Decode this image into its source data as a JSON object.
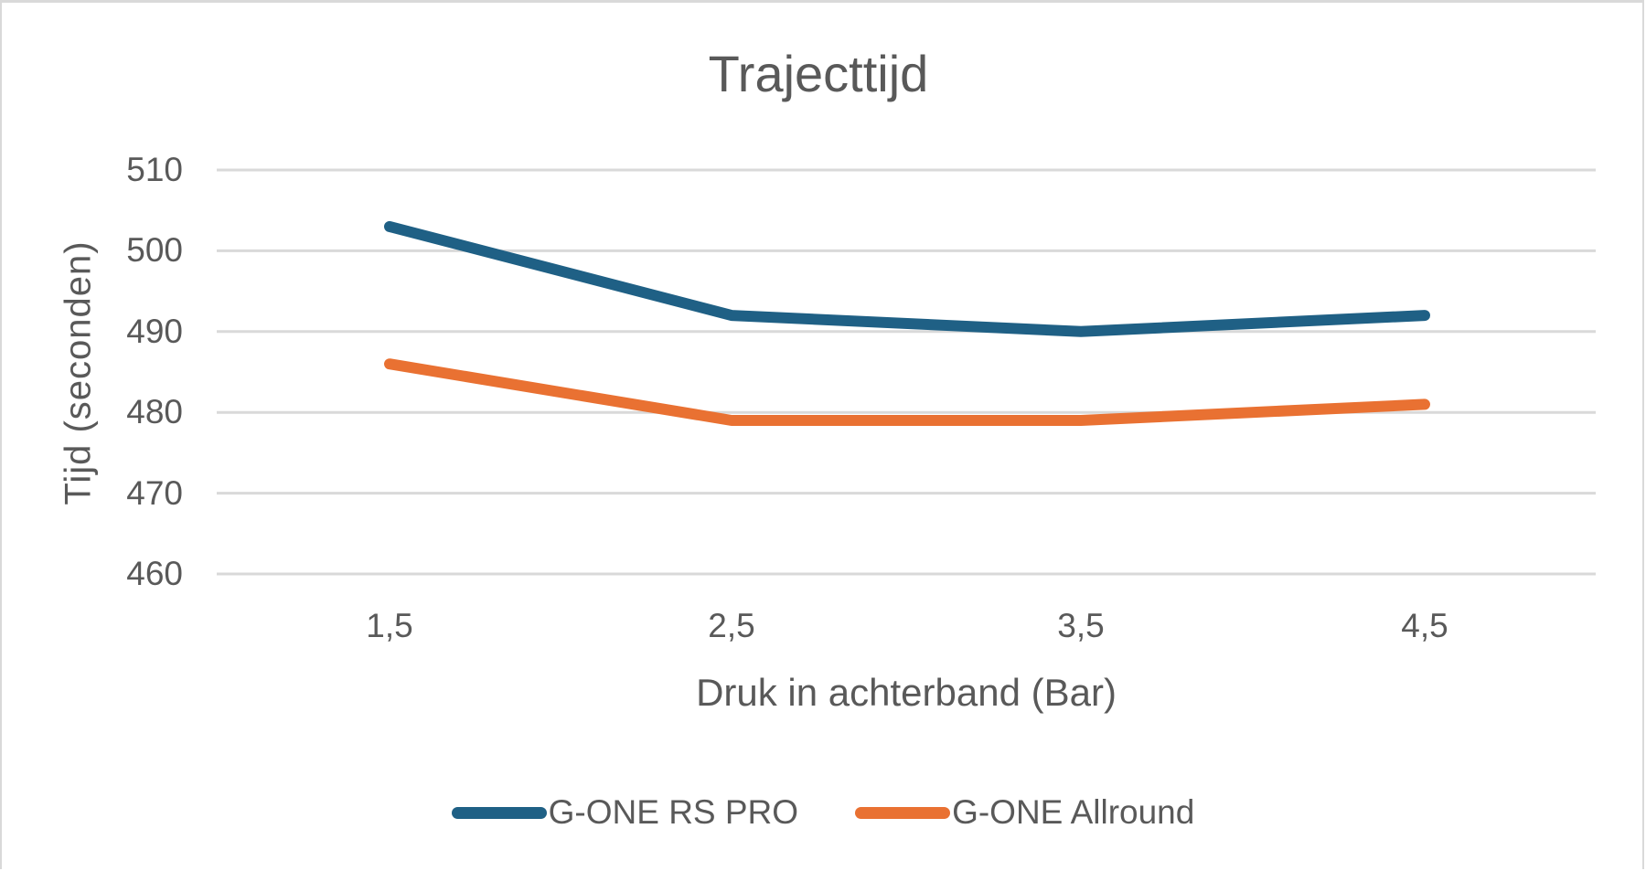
{
  "chart_data": {
    "type": "line",
    "title": "Trajecttijd",
    "xlabel": "Druk in achterband (Bar)",
    "ylabel": "Tijd (seconden)",
    "categories": [
      "1,5",
      "2,5",
      "3,5",
      "4,5"
    ],
    "x": [
      1.5,
      2.5,
      3.5,
      4.5
    ],
    "series": [
      {
        "name": "G-ONE RS PRO",
        "color": "#1f6085",
        "values": [
          503,
          492,
          490,
          492
        ]
      },
      {
        "name": "G-ONE Allround",
        "color": "#e97132",
        "values": [
          486,
          479,
          479,
          481
        ]
      }
    ],
    "ylim": [
      460,
      510
    ],
    "yticks": [
      "460",
      "470",
      "480",
      "490",
      "500",
      "510"
    ],
    "grid": true,
    "legend_position": "bottom",
    "gridline_color": "#d9d9d9"
  }
}
